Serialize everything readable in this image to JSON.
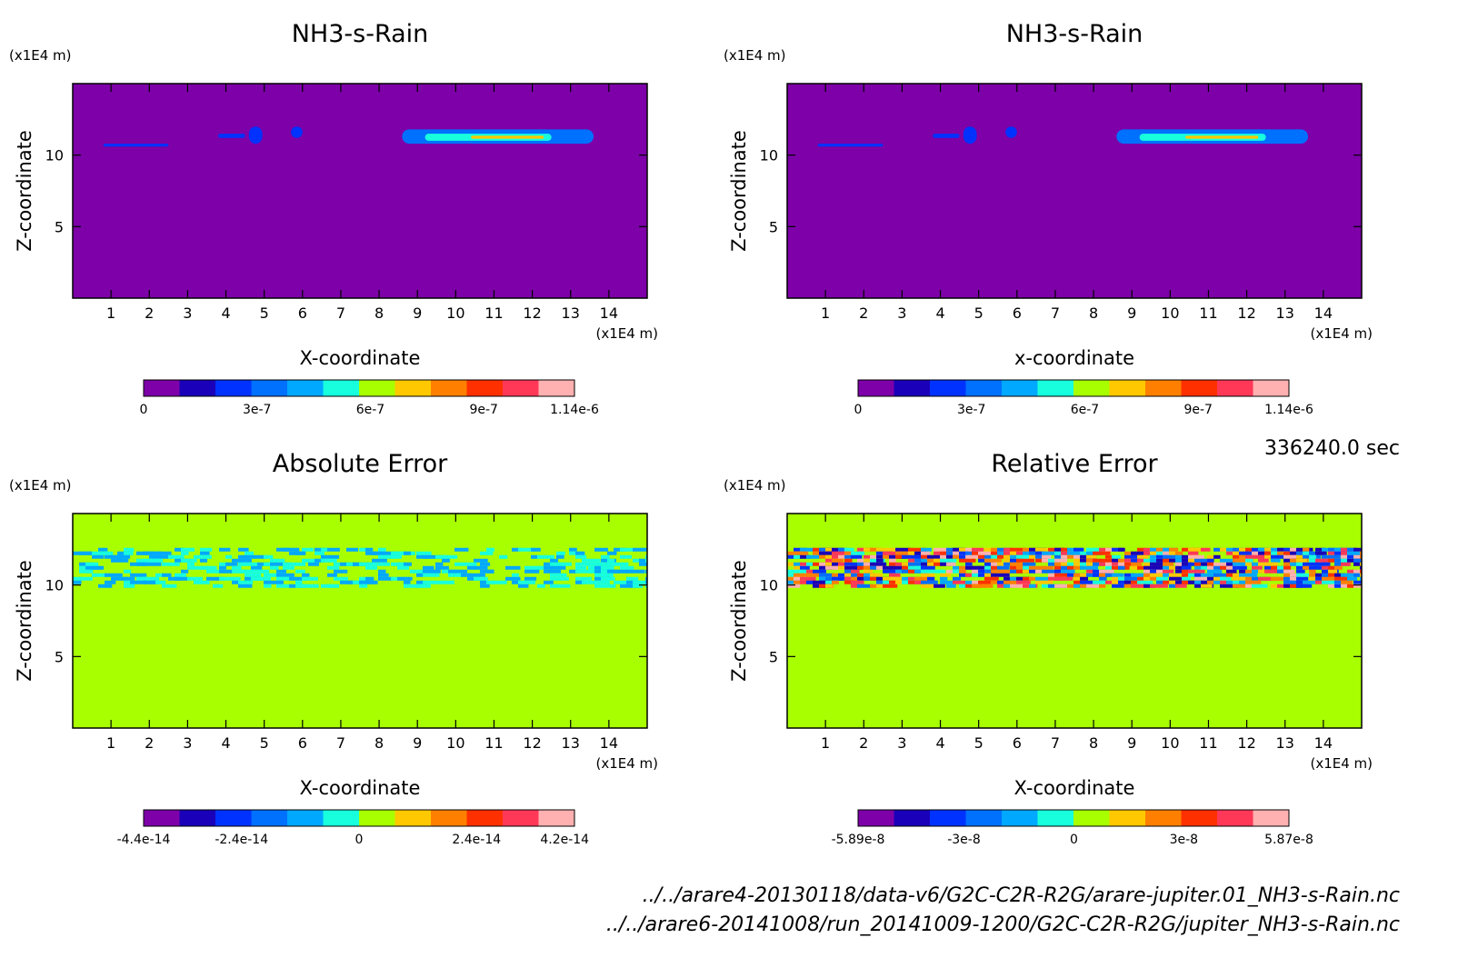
{
  "time_label": "336240.0 sec",
  "footer": {
    "file1": "../../arare4-20130118/data-v6/G2C-C2R-R2G/arare-jupiter.01_NH3-s-Rain.nc",
    "file2": "../../arare6-20141008/run_20141009-1200/G2C-C2R-R2G/jupiter_NH3-s-Rain.nc"
  },
  "palette": [
    "#7d00a8",
    "#1a00b8",
    "#0032ff",
    "#0070ff",
    "#00a8ff",
    "#18ffdd",
    "#a8ff00",
    "#ffc800",
    "#ff8000",
    "#ff3000",
    "#ff3858",
    "#ffb0b0"
  ],
  "chart_data": [
    {
      "type": "heatmap",
      "title": "NH3-s-Rain",
      "xlabel": "X-coordinate",
      "ylabel": "Z-coordinate",
      "x_unit": "(x1E4 m)",
      "z_unit": "(x1E4 m)",
      "xlim": [
        0,
        15
      ],
      "ylim": [
        0,
        15
      ],
      "xticks": [
        "1",
        "2",
        "3",
        "4",
        "5",
        "6",
        "7",
        "8",
        "9",
        "10",
        "11",
        "12",
        "13",
        "14"
      ],
      "yticks": [
        "5",
        "10"
      ],
      "background_level": 0,
      "colorbar": {
        "min": 0,
        "max": 1.14e-06,
        "labels": [
          "0",
          "3e-7",
          "6e-7",
          "9e-7",
          "1.14e-6"
        ],
        "label_positions": [
          0,
          3e-07,
          6e-07,
          9e-07,
          1.14e-06
        ]
      },
      "features": [
        {
          "x": [
            0.8,
            2.5
          ],
          "z": [
            10.6,
            10.8
          ],
          "level": 2
        },
        {
          "x": [
            3.8,
            4.5
          ],
          "z": [
            11.2,
            11.5
          ],
          "level": 2
        },
        {
          "x": [
            4.6,
            4.95
          ],
          "z": [
            10.8,
            12.0
          ],
          "level": 2
        },
        {
          "x": [
            5.7,
            6.0
          ],
          "z": [
            11.2,
            12.0
          ],
          "level": 2
        },
        {
          "x": [
            8.6,
            13.6
          ],
          "z": [
            10.8,
            11.8
          ],
          "level": 3
        },
        {
          "x": [
            9.2,
            12.5
          ],
          "z": [
            11.0,
            11.5
          ],
          "level": 5
        },
        {
          "x": [
            10.4,
            12.3
          ],
          "z": [
            11.15,
            11.35
          ],
          "level": 7
        }
      ]
    },
    {
      "type": "heatmap",
      "title": "NH3-s-Rain",
      "xlabel": "x-coordinate",
      "ylabel": "Z-coordinate",
      "x_unit": "(x1E4 m)",
      "z_unit": "(x1E4 m)",
      "xlim": [
        0,
        15
      ],
      "ylim": [
        0,
        15
      ],
      "xticks": [
        "1",
        "2",
        "3",
        "4",
        "5",
        "6",
        "7",
        "8",
        "9",
        "10",
        "11",
        "12",
        "13",
        "14"
      ],
      "yticks": [
        "5",
        "10"
      ],
      "background_level": 0,
      "colorbar": {
        "min": 0,
        "max": 1.14e-06,
        "labels": [
          "0",
          "3e-7",
          "6e-7",
          "9e-7",
          "1.14e-6"
        ],
        "label_positions": [
          0,
          3e-07,
          6e-07,
          9e-07,
          1.14e-06
        ]
      },
      "features": [
        {
          "x": [
            0.8,
            2.5
          ],
          "z": [
            10.6,
            10.8
          ],
          "level": 2
        },
        {
          "x": [
            3.8,
            4.5
          ],
          "z": [
            11.2,
            11.5
          ],
          "level": 2
        },
        {
          "x": [
            4.6,
            4.95
          ],
          "z": [
            10.8,
            12.0
          ],
          "level": 2
        },
        {
          "x": [
            5.7,
            6.0
          ],
          "z": [
            11.2,
            12.0
          ],
          "level": 2
        },
        {
          "x": [
            8.6,
            13.6
          ],
          "z": [
            10.8,
            11.8
          ],
          "level": 3
        },
        {
          "x": [
            9.2,
            12.5
          ],
          "z": [
            11.0,
            11.5
          ],
          "level": 5
        },
        {
          "x": [
            10.4,
            12.3
          ],
          "z": [
            11.15,
            11.35
          ],
          "level": 7
        }
      ]
    },
    {
      "type": "heatmap",
      "title": "Absolute Error",
      "xlabel": "X-coordinate",
      "ylabel": "Z-coordinate",
      "x_unit": "(x1E4 m)",
      "z_unit": "(x1E4 m)",
      "xlim": [
        0,
        15
      ],
      "ylim": [
        0,
        15
      ],
      "xticks": [
        "1",
        "2",
        "3",
        "4",
        "5",
        "6",
        "7",
        "8",
        "9",
        "10",
        "11",
        "12",
        "13",
        "14"
      ],
      "yticks": [
        "5",
        "10"
      ],
      "background_level": 6,
      "noise_band": {
        "z": [
          10.0,
          12.6
        ],
        "levels": [
          5,
          4
        ],
        "density": 0.35
      },
      "colorbar": {
        "min": -4.4e-14,
        "max": 4.4e-14,
        "labels": [
          "-4.4e-14",
          "-2.4e-14",
          "0",
          "2.4e-14",
          "4.2e-14"
        ],
        "label_positions": [
          -4.4e-14,
          -2.4e-14,
          0,
          2.4e-14,
          4.2e-14
        ]
      }
    },
    {
      "type": "heatmap",
      "title": "Relative Error",
      "xlabel": "X-coordinate",
      "ylabel": "Z-coordinate",
      "x_unit": "(x1E4 m)",
      "z_unit": "(x1E4 m)",
      "xlim": [
        0,
        15
      ],
      "ylim": [
        0,
        15
      ],
      "xticks": [
        "1",
        "2",
        "3",
        "4",
        "5",
        "6",
        "7",
        "8",
        "9",
        "10",
        "11",
        "12",
        "13",
        "14"
      ],
      "yticks": [
        "5",
        "10"
      ],
      "background_level": 6,
      "noise_band": {
        "z": [
          10.0,
          12.6
        ],
        "levels": [
          1,
          2,
          3,
          4,
          5,
          7,
          8,
          9,
          10,
          11
        ],
        "density": 0.7
      },
      "colorbar": {
        "min": -5.89e-08,
        "max": 5.87e-08,
        "labels": [
          "-5.89e-8",
          "-3e-8",
          "0",
          "3e-8",
          "5.87e-8"
        ],
        "label_positions": [
          -5.89e-08,
          -3e-08,
          0,
          3e-08,
          5.87e-08
        ]
      }
    }
  ]
}
